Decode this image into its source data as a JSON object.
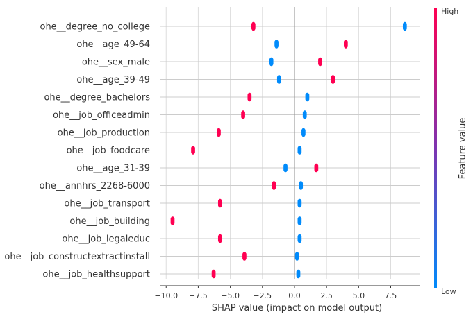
{
  "chart_data": {
    "type": "scatter",
    "subtype": "shap-summary-beeswarm",
    "title": "",
    "xlabel": "SHAP value (impact on model output)",
    "ylabel": "",
    "xlim": [
      -10.5,
      9.8
    ],
    "xticks": [
      -10.0,
      -7.5,
      -5.0,
      -2.5,
      0.0,
      2.5,
      5.0,
      7.5
    ],
    "xtick_labels": [
      "−10.0",
      "−7.5",
      "−5.0",
      "−2.5",
      "0.0",
      "2.5",
      "5.0",
      "7.5"
    ],
    "grid": true,
    "low_color": "#008bfb",
    "high_color": "#ff0052",
    "colorbar": {
      "title": "Feature value",
      "high_label": "High",
      "low_label": "Low",
      "placement": "right"
    },
    "features": [
      {
        "name": "ohe__degree_no_college",
        "low": {
          "min": 8.5,
          "max": 8.7
        },
        "high": {
          "min": -3.3,
          "max": -3.1
        }
      },
      {
        "name": "ohe__age_49-64",
        "low": {
          "min": -1.5,
          "max": -1.3
        },
        "high": {
          "min": 3.9,
          "max": 4.1
        }
      },
      {
        "name": "ohe__sex_male",
        "low": {
          "min": -1.9,
          "max": -1.7
        },
        "high": {
          "min": 1.9,
          "max": 2.1
        }
      },
      {
        "name": "ohe__age_39-49",
        "low": {
          "min": -1.3,
          "max": -1.1
        },
        "high": {
          "min": 2.9,
          "max": 3.1
        }
      },
      {
        "name": "ohe__degree_bachelors",
        "low": {
          "min": 0.9,
          "max": 1.1
        },
        "high": {
          "min": -3.6,
          "max": -3.4
        }
      },
      {
        "name": "ohe__job_officeadmin",
        "low": {
          "min": 0.7,
          "max": 0.9
        },
        "high": {
          "min": -4.1,
          "max": -3.9
        }
      },
      {
        "name": "ohe__job_production",
        "low": {
          "min": 0.6,
          "max": 0.8
        },
        "high": {
          "min": -6.0,
          "max": -5.8
        }
      },
      {
        "name": "ohe__job_foodcare",
        "low": {
          "min": 0.3,
          "max": 0.5
        },
        "high": {
          "min": -8.0,
          "max": -7.8
        }
      },
      {
        "name": "ohe__age_31-39",
        "low": {
          "min": -0.8,
          "max": -0.6
        },
        "high": {
          "min": 1.6,
          "max": 1.8
        }
      },
      {
        "name": "ohe__annhrs_2268-6000",
        "low": {
          "min": 0.4,
          "max": 0.6
        },
        "high": {
          "min": -1.7,
          "max": -1.5
        }
      },
      {
        "name": "ohe__job_transport",
        "low": {
          "min": 0.3,
          "max": 0.5
        },
        "high": {
          "min": -5.9,
          "max": -5.7
        }
      },
      {
        "name": "ohe__job_building",
        "low": {
          "min": 0.3,
          "max": 0.5
        },
        "high": {
          "min": -9.6,
          "max": -9.4
        }
      },
      {
        "name": "ohe__job_legaleduc",
        "low": {
          "min": 0.3,
          "max": 0.5
        },
        "high": {
          "min": -5.9,
          "max": -5.7
        }
      },
      {
        "name": "ohe__job_constructextractinstall",
        "low": {
          "min": 0.1,
          "max": 0.3
        },
        "high": {
          "min": -4.0,
          "max": -3.8
        }
      },
      {
        "name": "ohe__job_healthsupport",
        "low": {
          "min": 0.2,
          "max": 0.4
        },
        "high": {
          "min": -6.4,
          "max": -6.2
        }
      }
    ]
  }
}
